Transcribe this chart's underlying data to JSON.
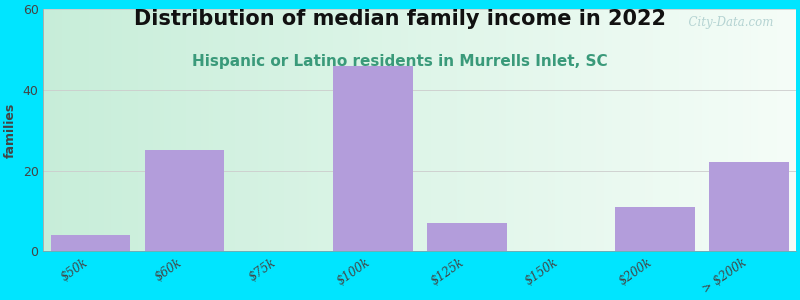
{
  "title": "Distribution of median family income in 2022",
  "subtitle": "Hispanic or Latino residents in Murrells Inlet, SC",
  "categories": [
    "$50k",
    "$60k",
    "$75k",
    "$100k",
    "$125k",
    "$150k",
    "$200k",
    "> $200k"
  ],
  "values": [
    4,
    25,
    0,
    46,
    7,
    0,
    11,
    22
  ],
  "bar_color": "#b39ddb",
  "background_outer": "#00e5ff",
  "bg_left": "#c8ecd8",
  "bg_right": "#f0f8f0",
  "ylabel": "families",
  "ylim": [
    0,
    60
  ],
  "yticks": [
    0,
    20,
    40,
    60
  ],
  "title_fontsize": 15,
  "subtitle_fontsize": 11,
  "subtitle_color": "#3a9a7a",
  "watermark": "  City-Data.com",
  "watermark_color": "#aacccc"
}
